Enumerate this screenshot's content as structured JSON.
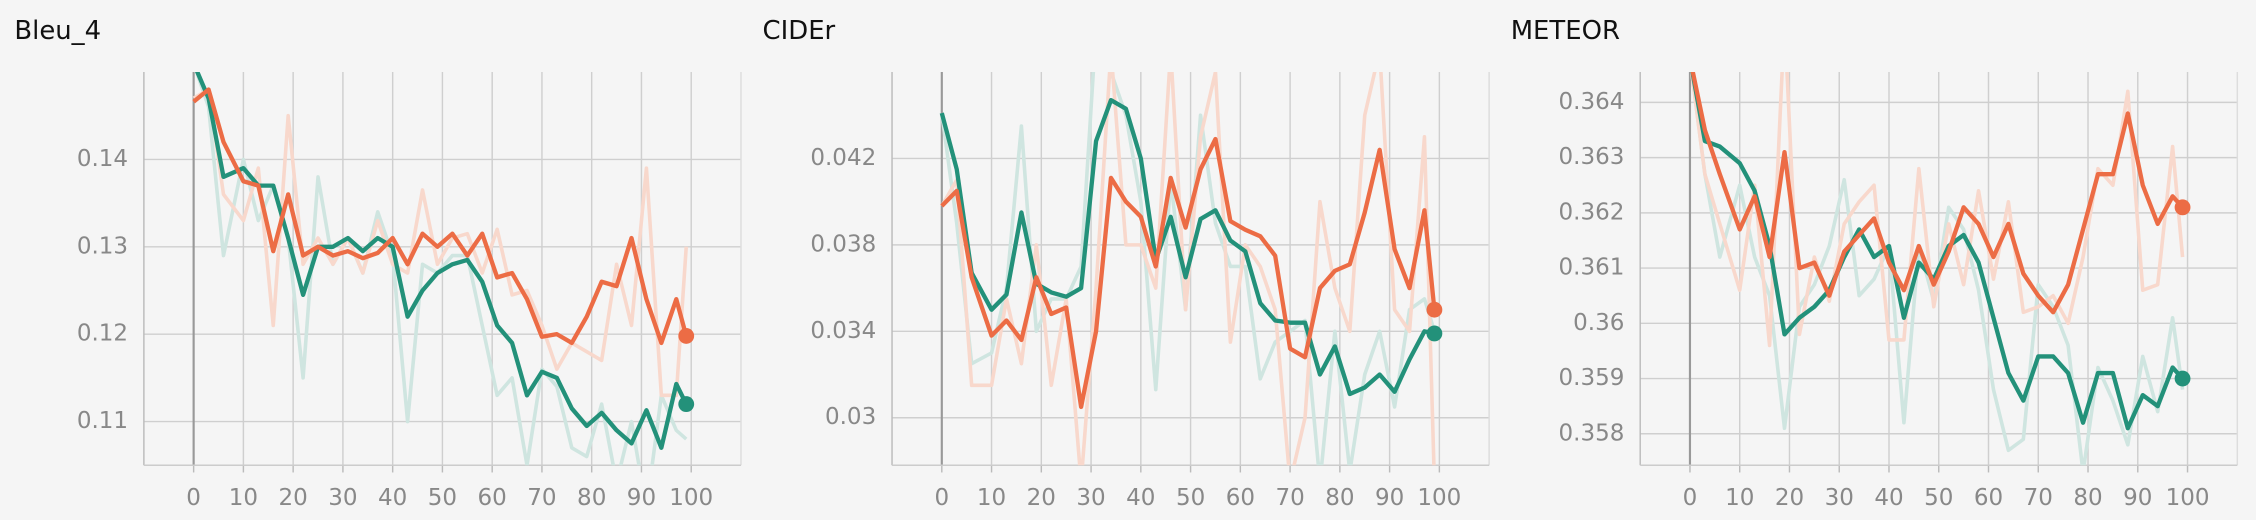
{
  "chart_data": [
    {
      "type": "line",
      "title": "Bleu_4",
      "x": [
        0,
        3,
        6,
        10,
        13,
        16,
        19,
        22,
        25,
        28,
        31,
        34,
        37,
        40,
        43,
        46,
        49,
        52,
        55,
        58,
        61,
        64,
        67,
        70,
        73,
        76,
        79,
        82,
        85,
        88,
        91,
        94,
        97,
        99
      ],
      "xlim": [
        -10,
        110
      ],
      "xticks": [
        0,
        10,
        20,
        30,
        40,
        50,
        60,
        70,
        80,
        90,
        100
      ],
      "ylim": [
        0.105,
        0.15
      ],
      "yticks": [
        0.11,
        0.12,
        0.13,
        0.14
      ],
      "grid": true,
      "series": [
        {
          "color": "#cfe5e0",
          "width": 2.5,
          "values": [
            0.151,
            0.146,
            0.129,
            0.14,
            0.133,
            0.137,
            0.131,
            0.115,
            0.138,
            0.128,
            0.131,
            0.127,
            0.134,
            0.129,
            0.11,
            0.128,
            0.127,
            0.129,
            0.129,
            0.121,
            0.113,
            0.115,
            0.105,
            0.116,
            0.114,
            0.107,
            0.106,
            0.112,
            0.103,
            0.11,
            0.1,
            0.113,
            0.109,
            0.108
          ]
        },
        {
          "color": "#f8d8cc",
          "width": 2.5,
          "values": [
            0.147,
            0.148,
            0.136,
            0.133,
            0.139,
            0.121,
            0.145,
            0.128,
            0.131,
            0.128,
            0.131,
            0.127,
            0.133,
            0.128,
            0.127,
            0.1365,
            0.128,
            0.131,
            0.1315,
            0.127,
            0.132,
            0.1245,
            0.125,
            0.121,
            0.116,
            0.119,
            0.118,
            0.117,
            0.128,
            0.121,
            0.139,
            0.113,
            0.113,
            0.13
          ]
        },
        {
          "color": "#23917a",
          "width": 3,
          "end_dot": true,
          "values": [
            0.151,
            0.147,
            0.138,
            0.139,
            0.137,
            0.137,
            0.131,
            0.1245,
            0.13,
            0.13,
            0.131,
            0.1295,
            0.131,
            0.13,
            0.122,
            0.125,
            0.127,
            0.128,
            0.1285,
            0.126,
            0.121,
            0.119,
            0.113,
            0.1157,
            0.115,
            0.1115,
            0.1095,
            0.111,
            0.109,
            0.1075,
            0.1113,
            0.107,
            0.1143,
            0.112
          ]
        },
        {
          "color": "#ec6c45",
          "width": 3,
          "end_dot": true,
          "values": [
            0.1466,
            0.148,
            0.142,
            0.1375,
            0.137,
            0.1295,
            0.136,
            0.129,
            0.13,
            0.129,
            0.1295,
            0.1287,
            0.1293,
            0.131,
            0.128,
            0.1315,
            0.13,
            0.1315,
            0.129,
            0.1315,
            0.1265,
            0.127,
            0.124,
            0.1197,
            0.12,
            0.119,
            0.122,
            0.126,
            0.1255,
            0.131,
            0.124,
            0.119,
            0.124,
            0.1198
          ]
        }
      ]
    },
    {
      "type": "line",
      "title": "CIDEr",
      "x": [
        0,
        3,
        6,
        10,
        13,
        16,
        19,
        22,
        25,
        28,
        31,
        34,
        37,
        40,
        43,
        46,
        49,
        52,
        55,
        58,
        61,
        64,
        67,
        70,
        73,
        76,
        79,
        82,
        85,
        88,
        91,
        94,
        97,
        99
      ],
      "xlim": [
        -10,
        110
      ],
      "xticks": [
        0,
        10,
        20,
        30,
        40,
        50,
        60,
        70,
        80,
        90,
        100
      ],
      "ylim": [
        0.0278,
        0.046
      ],
      "yticks": [
        0.03,
        0.034,
        0.038,
        0.042
      ],
      "grid": true,
      "series": [
        {
          "color": "#cfe5e0",
          "width": 2.5,
          "values": [
            0.0441,
            0.039,
            0.0325,
            0.033,
            0.036,
            0.0435,
            0.034,
            0.0355,
            0.0355,
            0.037,
            0.048,
            0.046,
            0.044,
            0.04,
            0.0313,
            0.041,
            0.035,
            0.044,
            0.039,
            0.037,
            0.037,
            0.0318,
            0.0335,
            0.034,
            0.0345,
            0.027,
            0.034,
            0.0275,
            0.032,
            0.034,
            0.0305,
            0.035,
            0.0355,
            0.034
          ]
        },
        {
          "color": "#f8d8cc",
          "width": 2.5,
          "values": [
            0.0398,
            0.041,
            0.0315,
            0.0315,
            0.0355,
            0.0325,
            0.038,
            0.0315,
            0.0355,
            0.027,
            0.036,
            0.047,
            0.038,
            0.038,
            0.036,
            0.047,
            0.035,
            0.043,
            0.046,
            0.0335,
            0.038,
            0.037,
            0.035,
            0.027,
            0.03,
            0.04,
            0.036,
            0.034,
            0.044,
            0.047,
            0.035,
            0.034,
            0.043,
            0.027
          ]
        },
        {
          "color": "#23917a",
          "width": 3,
          "end_dot": true,
          "values": [
            0.0441,
            0.0415,
            0.0367,
            0.035,
            0.0357,
            0.0395,
            0.0362,
            0.0358,
            0.0356,
            0.036,
            0.0428,
            0.0447,
            0.0443,
            0.042,
            0.0373,
            0.0393,
            0.0365,
            0.0392,
            0.0396,
            0.0382,
            0.0377,
            0.0353,
            0.0345,
            0.0344,
            0.0344,
            0.032,
            0.0333,
            0.0311,
            0.0314,
            0.032,
            0.0312,
            0.0327,
            0.034,
            0.0339
          ]
        },
        {
          "color": "#ec6c45",
          "width": 3,
          "end_dot": true,
          "values": [
            0.0398,
            0.0405,
            0.0365,
            0.0338,
            0.0345,
            0.0336,
            0.0365,
            0.0348,
            0.0351,
            0.0305,
            0.034,
            0.0411,
            0.04,
            0.0393,
            0.037,
            0.0411,
            0.0388,
            0.0415,
            0.0429,
            0.0391,
            0.0387,
            0.0384,
            0.0375,
            0.0332,
            0.0328,
            0.036,
            0.0368,
            0.0371,
            0.0395,
            0.0424,
            0.0378,
            0.036,
            0.0396,
            0.035
          ]
        }
      ]
    },
    {
      "type": "line",
      "title": "METEOR",
      "x": [
        0,
        3,
        6,
        10,
        13,
        16,
        19,
        22,
        25,
        28,
        31,
        34,
        37,
        40,
        43,
        46,
        49,
        52,
        55,
        58,
        61,
        64,
        67,
        70,
        73,
        76,
        79,
        82,
        85,
        88,
        91,
        94,
        97,
        99
      ],
      "xlim": [
        -10,
        110
      ],
      "xticks": [
        0,
        10,
        20,
        30,
        40,
        50,
        60,
        70,
        80,
        90,
        100
      ],
      "ylim": [
        0.35743,
        0.36455
      ],
      "yticks": [
        0.358,
        0.359,
        0.36,
        0.361,
        0.362,
        0.363,
        0.364
      ],
      "grid": true,
      "series": [
        {
          "color": "#cfe5e0",
          "width": 2.5,
          "values": [
            0.3648,
            0.3627,
            0.3612,
            0.3625,
            0.3612,
            0.3605,
            0.3581,
            0.3603,
            0.3607,
            0.3614,
            0.3626,
            0.3605,
            0.3608,
            0.3614,
            0.3582,
            0.3614,
            0.3604,
            0.3621,
            0.3617,
            0.3606,
            0.3588,
            0.3577,
            0.3579,
            0.3607,
            0.3603,
            0.3596,
            0.3573,
            0.3592,
            0.3586,
            0.3578,
            0.3594,
            0.3584,
            0.3601,
            0.3588
          ]
        },
        {
          "color": "#f8d8cc",
          "width": 2.5,
          "values": [
            0.3648,
            0.3627,
            0.3618,
            0.3606,
            0.3625,
            0.3596,
            0.3655,
            0.3598,
            0.3612,
            0.3604,
            0.3618,
            0.3622,
            0.3625,
            0.3597,
            0.3597,
            0.3628,
            0.3603,
            0.3618,
            0.3607,
            0.3624,
            0.3608,
            0.3622,
            0.3602,
            0.3603,
            0.3605,
            0.36,
            0.3612,
            0.3628,
            0.3625,
            0.3642,
            0.3606,
            0.3607,
            0.3632,
            0.3612
          ]
        },
        {
          "color": "#23917a",
          "width": 3,
          "end_dot": true,
          "values": [
            0.3648,
            0.3633,
            0.3632,
            0.3629,
            0.3624,
            0.3614,
            0.3598,
            0.3601,
            0.3603,
            0.3606,
            0.3612,
            0.3617,
            0.3612,
            0.3614,
            0.3601,
            0.3611,
            0.3608,
            0.3614,
            0.3616,
            0.3611,
            0.3601,
            0.3591,
            0.3586,
            0.3594,
            0.3594,
            0.3591,
            0.3582,
            0.3591,
            0.3591,
            0.3581,
            0.3587,
            0.3585,
            0.3592,
            0.359
          ]
        },
        {
          "color": "#ec6c45",
          "width": 3,
          "end_dot": true,
          "values": [
            0.3648,
            0.3635,
            0.3627,
            0.3617,
            0.3623,
            0.3612,
            0.3631,
            0.361,
            0.3611,
            0.3605,
            0.3613,
            0.3616,
            0.3619,
            0.3611,
            0.3606,
            0.3614,
            0.3607,
            0.3613,
            0.3621,
            0.3618,
            0.3612,
            0.3618,
            0.3609,
            0.3605,
            0.3602,
            0.3607,
            0.3617,
            0.3627,
            0.3627,
            0.3638,
            0.3625,
            0.3618,
            0.3623,
            0.3621
          ]
        }
      ]
    }
  ]
}
